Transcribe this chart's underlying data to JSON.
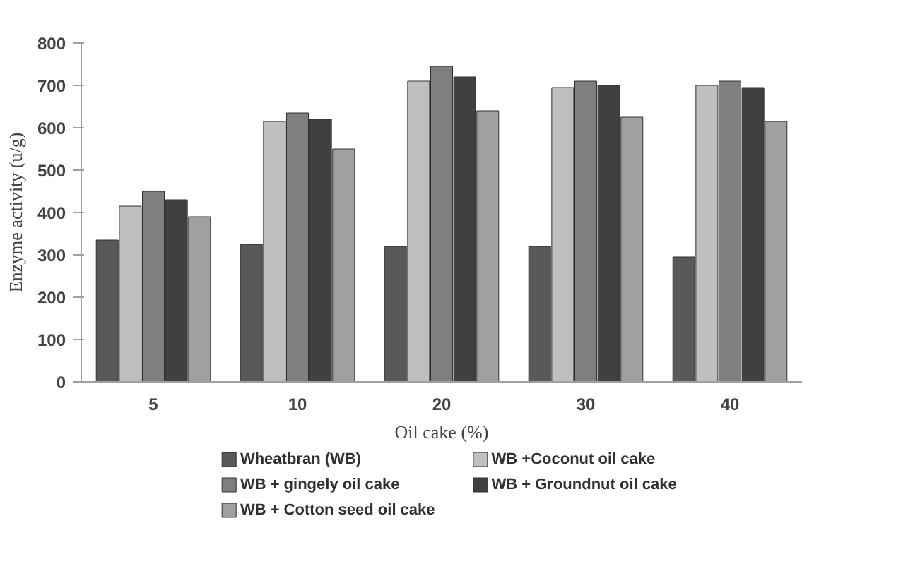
{
  "chart_data": {
    "type": "bar",
    "xlabel": "Oil cake (%)",
    "ylabel": "Enzyme activity (u/g)",
    "categories": [
      "5",
      "10",
      "20",
      "30",
      "40"
    ],
    "series": [
      {
        "name": "Wheatbran (WB)",
        "color": "#595959",
        "values": [
          335,
          325,
          320,
          320,
          295
        ]
      },
      {
        "name": "WB +Coconut oil cake",
        "color": "#bfbfbf",
        "values": [
          415,
          615,
          710,
          695,
          700
        ]
      },
      {
        "name": "WB + gingely oil cake",
        "color": "#7f7f7f",
        "values": [
          450,
          635,
          745,
          710,
          710
        ]
      },
      {
        "name": "WB + Groundnut oil cake",
        "color": "#404040",
        "values": [
          430,
          620,
          720,
          700,
          695
        ]
      },
      {
        "name": "WB + Cotton seed oil cake",
        "color": "#a0a0a0",
        "values": [
          390,
          550,
          640,
          625,
          615
        ]
      }
    ],
    "ylim": [
      0,
      800
    ],
    "yticks": [
      0,
      100,
      200,
      300,
      400,
      500,
      600,
      700,
      800
    ],
    "grid": false,
    "legend": "bottom"
  }
}
